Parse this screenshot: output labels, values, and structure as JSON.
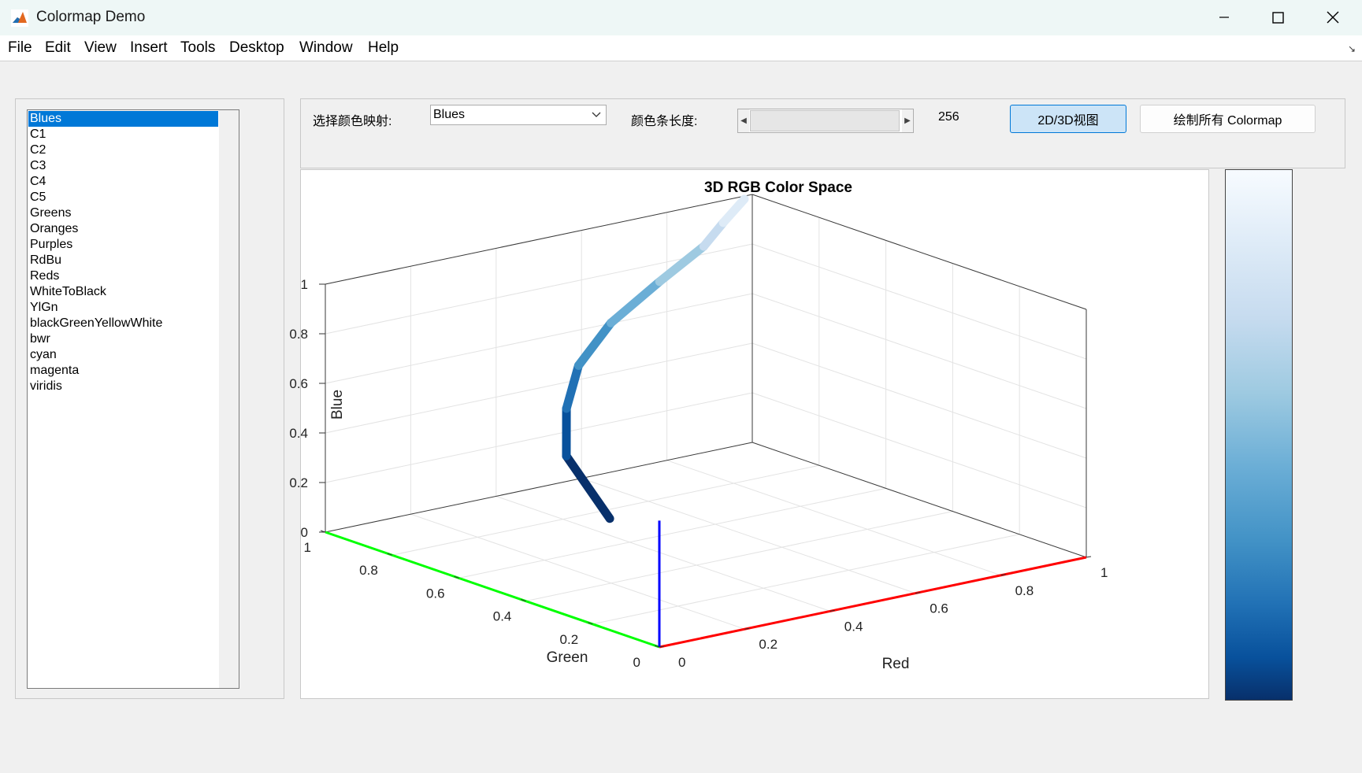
{
  "window": {
    "title": "Colormap Demo",
    "icon": "matlab-icon"
  },
  "menu": [
    "File",
    "Edit",
    "View",
    "Insert",
    "Tools",
    "Desktop",
    "Window",
    "Help"
  ],
  "colormap_list": {
    "selected": "Blues",
    "items": [
      "Blues",
      "C1",
      "C2",
      "C3",
      "C4",
      "C5",
      "Greens",
      "Oranges",
      "Purples",
      "RdBu",
      "Reds",
      "WhiteToBlack",
      "YlGn",
      "blackGreenYellowWhite",
      "bwr",
      "cyan",
      "magenta",
      "viridis"
    ]
  },
  "controls": {
    "select_label": "选择颜色映射:",
    "dropdown_value": "Blues",
    "length_label": "颜色条长度:",
    "length_value": "256",
    "view_button": "2D/3D视图",
    "plot_all_button": "绘制所有 Colormap"
  },
  "chart_data": {
    "type": "line",
    "title": "3D RGB Color Space",
    "xlabel": "Red",
    "ylabel": "Green",
    "zlabel": "Blue",
    "xlim": [
      0,
      1
    ],
    "ylim": [
      0,
      1
    ],
    "zlim": [
      0,
      1
    ],
    "x_ticks": [
      "0",
      "0.2",
      "0.4",
      "0.6",
      "0.8",
      "1"
    ],
    "y_ticks": [
      "0",
      "0.2",
      "0.4",
      "0.6",
      "0.8",
      "1"
    ],
    "z_ticks": [
      "0",
      "0.2",
      "0.4",
      "0.6",
      "0.8",
      "1"
    ],
    "grid": true,
    "axis_colors": {
      "red_axis": "#ff0000",
      "green_axis": "#00ff00",
      "blue_axis": "#0000ff"
    },
    "series": [
      {
        "colormap": "Blues",
        "points": [
          [
            0.031,
            0.188,
            0.42
          ],
          [
            0.031,
            0.318,
            0.612
          ],
          [
            0.129,
            0.443,
            0.71
          ],
          [
            0.259,
            0.573,
            0.776
          ],
          [
            0.42,
            0.682,
            0.839
          ],
          [
            0.62,
            0.792,
            0.882
          ],
          [
            0.776,
            0.859,
            0.937
          ],
          [
            0.871,
            0.922,
            0.969
          ],
          [
            0.969,
            0.984,
            1.0
          ]
        ]
      }
    ]
  },
  "colorbar": {
    "colormap": "Blues",
    "orientation": "vertical"
  },
  "colors": {
    "selection": "#0078d7",
    "accent_button": "#cce4f7"
  }
}
